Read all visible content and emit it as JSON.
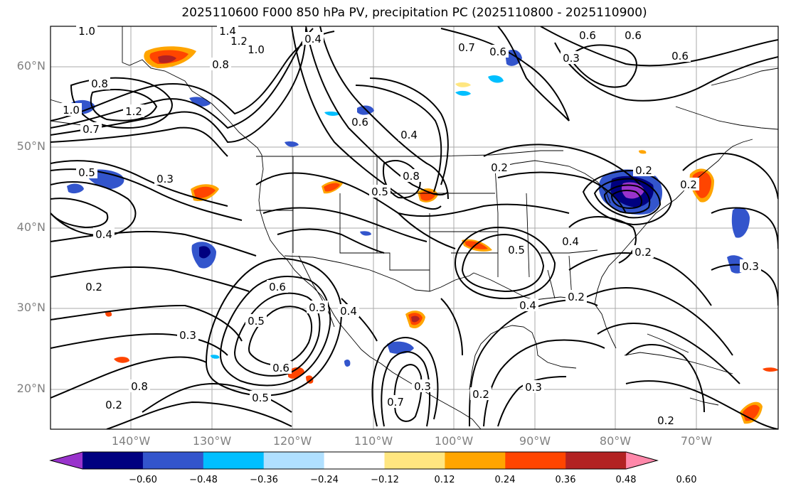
{
  "title": "2025110600 F000 850 hPa PV, precipitation PC (2025110800 - 2025110900)",
  "map": {
    "lat_ticks": [
      "60°N",
      "50°N",
      "40°N",
      "30°N",
      "20°N"
    ],
    "lon_ticks": [
      "140°W",
      "130°W",
      "120°W",
      "110°W",
      "100°W",
      "90°W",
      "80°W",
      "70°W"
    ],
    "contour_labels": [
      "1.0",
      "1.4",
      "0.4",
      "0.6",
      "0.6",
      "1.2",
      "0.7",
      "0.6",
      "0.3",
      "0.6",
      "0.8",
      "1.0",
      "0.8",
      "1.0",
      "1.2",
      "0.7",
      "0.6",
      "0.4",
      "0.5",
      "0.3",
      "0.2",
      "0.8",
      "0.5",
      "0.4",
      "0.5",
      "0.6",
      "0.3",
      "0.5",
      "0.4",
      "0.3",
      "0.6",
      "0.5",
      "0.8",
      "0.2",
      "0.7",
      "0.3",
      "0.4",
      "0.2",
      "0.4",
      "0.2",
      "0.3",
      "0.2",
      "0.3",
      "0.2",
      "0.2",
      "0.2",
      "0.2"
    ]
  },
  "colorbar": {
    "colors": [
      "#9933cc",
      "#000080",
      "#3355cc",
      "#00bfff",
      "#b0e0ff",
      "#ffffff",
      "#ffe680",
      "#ffa500",
      "#ff4500",
      "#b22222",
      "#ff88aa"
    ],
    "ticks": [
      "−0.60",
      "−0.48",
      "−0.36",
      "−0.24",
      "−0.12",
      "0.12",
      "0.24",
      "0.36",
      "0.48",
      "0.60"
    ]
  }
}
